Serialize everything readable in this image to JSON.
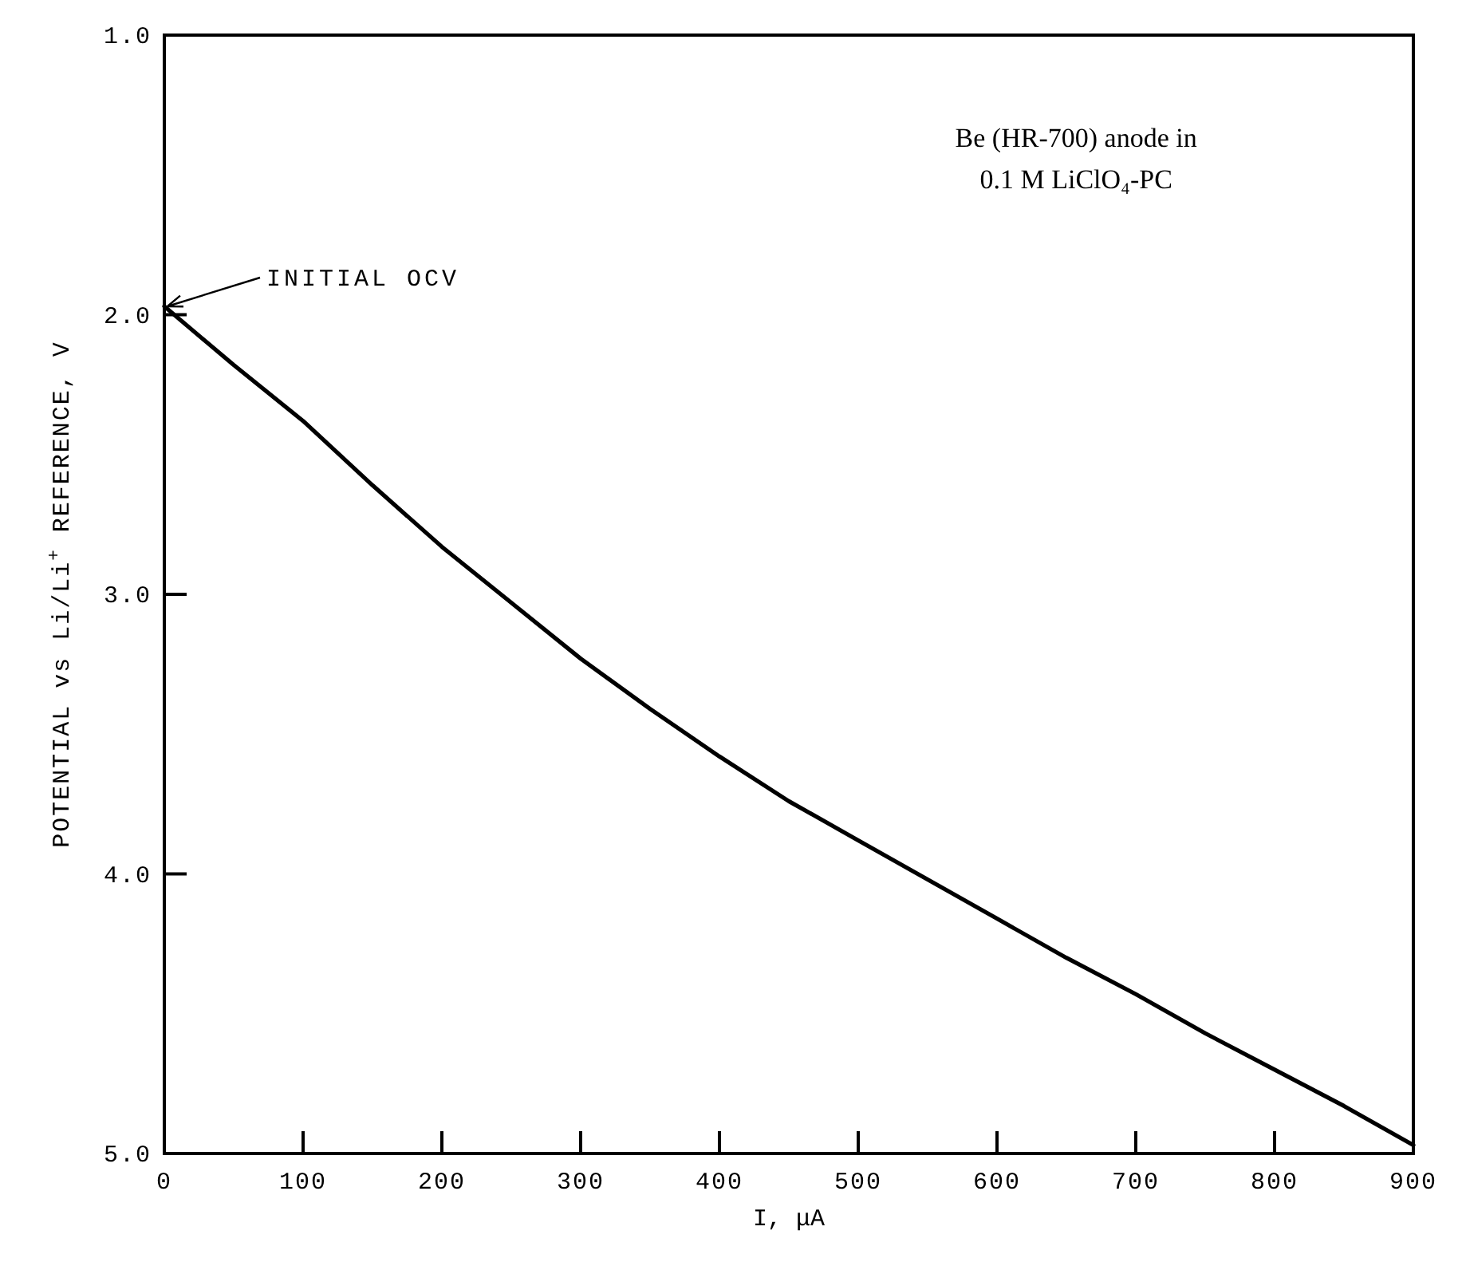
{
  "chart_data": {
    "type": "line",
    "xlabel": "I, μA",
    "ylabel": "POTENTIAL vs Li/Li$^{+}$ REFERENCE, V",
    "x": [
      0,
      50,
      100,
      150,
      200,
      250,
      300,
      350,
      400,
      450,
      500,
      550,
      600,
      650,
      700,
      750,
      800,
      850,
      900
    ],
    "series": [
      {
        "color": "#000000",
        "values": [
          1.97,
          2.18,
          2.38,
          2.61,
          2.83,
          3.03,
          3.23,
          3.41,
          3.58,
          3.74,
          3.88,
          4.02,
          4.16,
          4.3,
          4.43,
          4.57,
          4.7,
          4.83,
          4.97
        ]
      }
    ],
    "xlim": [
      0,
      900
    ],
    "xticks": [
      0,
      100,
      200,
      300,
      400,
      500,
      600,
      700,
      800,
      900
    ],
    "ylim": [
      5,
      1
    ],
    "yticks": [
      {
        "value": 1,
        "label": "1.0"
      },
      {
        "value": 2,
        "label": "2.0"
      },
      {
        "value": 3,
        "label": "3.0"
      },
      {
        "value": 4,
        "label": "4.0"
      },
      {
        "value": 5,
        "label": "5.0"
      }
    ],
    "annotations": [
      {
        "text": "INITIAL OCV",
        "x": 0,
        "y": 1.97
      },
      "Be (HR-700) anode in\n0.1 M LiClO₄-PC"
    ],
    "grid": false,
    "marker": "none",
    "line_style": "solid"
  }
}
